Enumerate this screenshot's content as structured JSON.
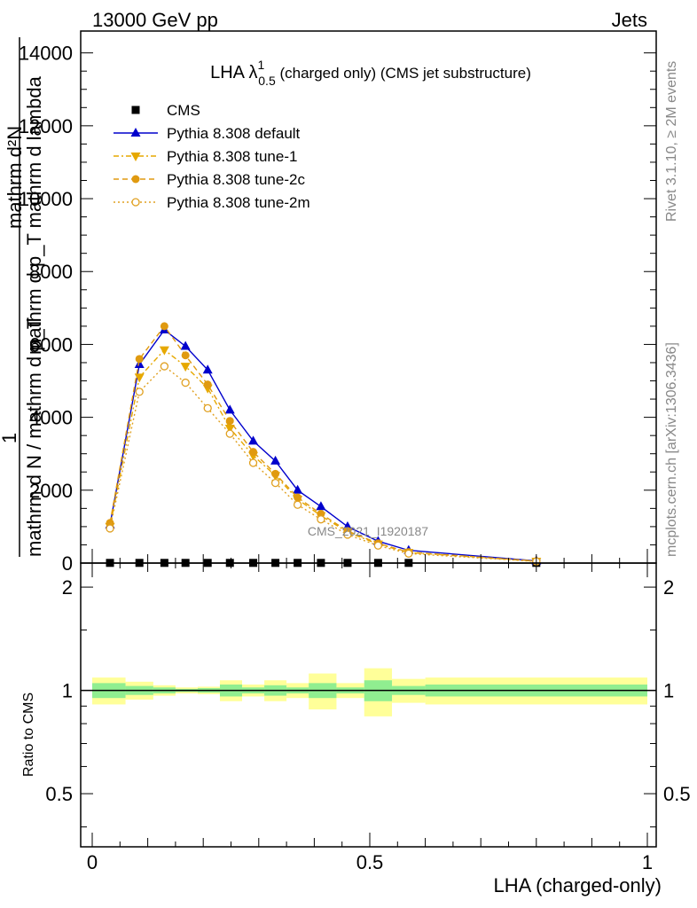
{
  "header": {
    "left": "13000 GeV pp",
    "right": "Jets"
  },
  "title": {
    "main": "LHA λ",
    "sup": "1",
    "sub": "0.5",
    "rest": " (charged only) (CMS jet substructure)"
  },
  "side_labels": {
    "rivet": "Rivet 3.1.10, ≥ 2M events",
    "mcplots": "mcplots.cern.ch [arXiv:1306.3436]"
  },
  "watermark": "CMS_2021_I1920187",
  "ylabel_main": {
    "one": "1",
    "frac1_num": "mathrm d²N",
    "frac1_den": "mathrm d p_T mathrm d lambda",
    "frac_bar_den": "mathrm d N / mathrm d p_T"
  },
  "colors": {
    "cms": "#000000",
    "default": "#0000cc",
    "tune1": "#e6a800",
    "tune2c": "#e09a10",
    "tune2m": "#e0a020",
    "band_inner": "#90ee90",
    "band_outer": "#ffff99"
  },
  "chart_data": [
    {
      "type": "line",
      "panel": "main",
      "xlabel": "LHA (charged-only)",
      "ylabel": "1 / (mathrm d N / mathrm d p_T) · mathrm d²N / (mathrm d p_T mathrm d lambda)",
      "xlim": [
        0,
        1
      ],
      "ylim": [
        0,
        14600
      ],
      "yticks": [
        0,
        2000,
        4000,
        6000,
        8000,
        10000,
        12000,
        14000
      ],
      "ytick_labels": [
        "0",
        "2000",
        "4000",
        "6000",
        "8000",
        "10000",
        "12000",
        "14000"
      ],
      "legend_position": "top-left",
      "x": [
        0.032,
        0.085,
        0.13,
        0.168,
        0.208,
        0.248,
        0.29,
        0.33,
        0.37,
        0.412,
        0.46,
        0.515,
        0.57,
        0.8
      ],
      "series": [
        {
          "name": "CMS",
          "marker": "square",
          "colorKey": "cms",
          "values": [
            5,
            5,
            5,
            5,
            5,
            5,
            5,
            5,
            5,
            5,
            5,
            5,
            5,
            5
          ]
        },
        {
          "name": "Pythia 8.308 default",
          "marker": "triangle-up",
          "colorKey": "default",
          "dash": "",
          "values": [
            1050,
            5450,
            6400,
            5950,
            5300,
            4200,
            3350,
            2800,
            2000,
            1550,
            1000,
            600,
            350,
            60
          ]
        },
        {
          "name": "Pythia 8.308 tune-1",
          "marker": "triangle-down",
          "colorKey": "tune1",
          "dash": "6,3,2,3",
          "values": [
            1000,
            5100,
            5850,
            5400,
            4800,
            3700,
            2950,
            2400,
            1750,
            1300,
            850,
            520,
            290,
            50
          ]
        },
        {
          "name": "Pythia 8.308 tune-2c",
          "marker": "circle",
          "colorKey": "tune2c",
          "dash": "6,4",
          "values": [
            1100,
            5600,
            6500,
            5700,
            4900,
            3900,
            3050,
            2450,
            1800,
            1350,
            880,
            540,
            300,
            55
          ]
        },
        {
          "name": "Pythia 8.308 tune-2m",
          "marker": "circle-open",
          "colorKey": "tune2m",
          "dash": "2,3",
          "values": [
            950,
            4700,
            5400,
            4950,
            4250,
            3550,
            2750,
            2200,
            1600,
            1200,
            780,
            480,
            260,
            45
          ]
        }
      ]
    },
    {
      "type": "area",
      "panel": "ratio",
      "xlabel": "LHA (charged-only)",
      "ylabel": "Ratio to CMS",
      "xlim": [
        0,
        1
      ],
      "ylim": [
        0.35,
        2.35
      ],
      "yticks": [
        0.5,
        1,
        2
      ],
      "ytick_labels": [
        "0.5",
        "1",
        "2"
      ],
      "xticks": [
        0,
        0.5,
        1
      ],
      "xtick_labels": [
        "0",
        "0.5",
        "1"
      ],
      "bins": [
        {
          "lo": 0.0,
          "hi": 0.06,
          "inner": 0.05,
          "outer": 0.09
        },
        {
          "lo": 0.06,
          "hi": 0.11,
          "inner": 0.03,
          "outer": 0.06
        },
        {
          "lo": 0.11,
          "hi": 0.15,
          "inner": 0.02,
          "outer": 0.035
        },
        {
          "lo": 0.15,
          "hi": 0.19,
          "inner": 0.01,
          "outer": 0.02
        },
        {
          "lo": 0.19,
          "hi": 0.23,
          "inner": 0.015,
          "outer": 0.025
        },
        {
          "lo": 0.23,
          "hi": 0.27,
          "inner": 0.04,
          "outer": 0.07
        },
        {
          "lo": 0.27,
          "hi": 0.31,
          "inner": 0.02,
          "outer": 0.04
        },
        {
          "lo": 0.31,
          "hi": 0.35,
          "inner": 0.035,
          "outer": 0.07
        },
        {
          "lo": 0.35,
          "hi": 0.39,
          "inner": 0.02,
          "outer": 0.05
        },
        {
          "lo": 0.39,
          "hi": 0.44,
          "inner": 0.05,
          "outer": 0.12
        },
        {
          "lo": 0.44,
          "hi": 0.49,
          "inner": 0.02,
          "outer": 0.05
        },
        {
          "lo": 0.49,
          "hi": 0.54,
          "inner": 0.07,
          "outer": 0.16
        },
        {
          "lo": 0.54,
          "hi": 0.6,
          "inner": 0.03,
          "outer": 0.08
        },
        {
          "lo": 0.6,
          "hi": 1.0,
          "inner": 0.04,
          "outer": 0.09
        }
      ]
    }
  ]
}
